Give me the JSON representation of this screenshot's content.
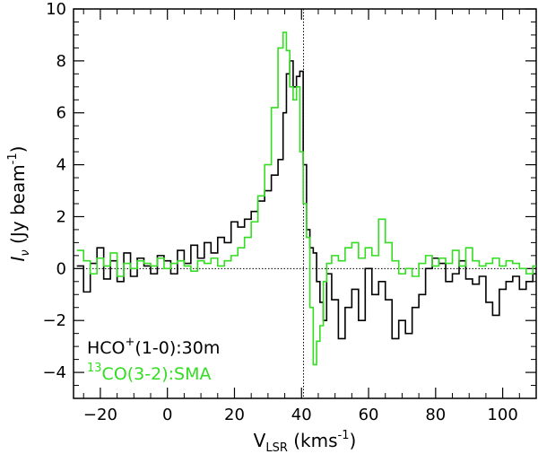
{
  "chart_data": {
    "type": "line",
    "style": "step",
    "title": "",
    "xlabel": {
      "main": "V",
      "sub": "LSR",
      "unit_pre": "(kms",
      "unit_sup": "-1",
      "unit_post": ")"
    },
    "ylabel": {
      "main": "I",
      "sub": "ν",
      "unit_pre": "(Jy beam",
      "unit_sup": "-1",
      "unit_post": ")"
    },
    "xlim": [
      -28,
      110
    ],
    "ylim": [
      -5,
      10
    ],
    "xticks": [
      -20,
      0,
      20,
      40,
      60,
      80,
      100
    ],
    "yticks": [
      -4,
      -2,
      0,
      2,
      4,
      6,
      8,
      10
    ],
    "grid": false,
    "zero_line": 0,
    "vertical_line": 40.6,
    "legend_placement": "bottom-left",
    "series": [
      {
        "label_main": "HCO",
        "label_sup": "+",
        "label_rest": "(1-0):30m",
        "color": "#000000",
        "x": [
          -26,
          -24,
          -22,
          -20,
          -18,
          -16,
          -14,
          -12,
          -10,
          -8,
          -6,
          -4,
          -2,
          0,
          2,
          4,
          6,
          8,
          10,
          12,
          14,
          16,
          18,
          20,
          22,
          24,
          26,
          28,
          30,
          32,
          34,
          35,
          36,
          37,
          38,
          39,
          40,
          41,
          42,
          43,
          44,
          45,
          46,
          47,
          48,
          50,
          52,
          54,
          56,
          58,
          60,
          62,
          64,
          66,
          68,
          70,
          72,
          74,
          76,
          78,
          80,
          82,
          84,
          86,
          88,
          90,
          92,
          94,
          96,
          98,
          100,
          102,
          104,
          106,
          108,
          110
        ],
        "y": [
          0.1,
          -0.9,
          0.2,
          0.8,
          -0.4,
          0.3,
          -0.5,
          0.6,
          -0.3,
          0.4,
          0.1,
          -0.2,
          0.5,
          0.3,
          -0.2,
          0.7,
          0.2,
          0.9,
          0.4,
          1.0,
          0.6,
          1.2,
          1.0,
          1.8,
          1.6,
          1.9,
          2.2,
          2.6,
          3.0,
          3.6,
          4.2,
          6.0,
          7.5,
          8.0,
          7.0,
          7.4,
          7.6,
          4.0,
          1.5,
          0.8,
          0.6,
          -0.5,
          -1.3,
          -2.0,
          -0.2,
          -1.2,
          -2.7,
          -1.5,
          -0.8,
          -2.0,
          0.0,
          -1.0,
          -0.5,
          -1.2,
          -2.7,
          -2.0,
          -2.5,
          -1.5,
          -1.0,
          0.0,
          0.4,
          0.2,
          -0.5,
          -0.2,
          0.3,
          -0.4,
          -0.6,
          -0.3,
          -1.3,
          -1.8,
          -0.8,
          -0.5,
          -0.3,
          -0.8,
          -0.5,
          -0.2
        ]
      },
      {
        "label_main": "CO(3-2):SMA",
        "label_pre_sup": "13",
        "color": "#33dd22",
        "x": [
          -26,
          -24,
          -22,
          -20,
          -18,
          -16,
          -14,
          -12,
          -10,
          -8,
          -6,
          -4,
          -2,
          0,
          2,
          4,
          6,
          8,
          10,
          12,
          14,
          16,
          18,
          20,
          22,
          24,
          26,
          28,
          30,
          32,
          34,
          35,
          36,
          37,
          38,
          39,
          40,
          41,
          42,
          43,
          44,
          45,
          46,
          47,
          48,
          50,
          52,
          54,
          56,
          58,
          60,
          62,
          64,
          66,
          68,
          70,
          72,
          74,
          76,
          78,
          80,
          82,
          84,
          86,
          88,
          90,
          92,
          94,
          96,
          98,
          100,
          102,
          104,
          106,
          108,
          110
        ],
        "y": [
          0.7,
          0.3,
          -0.2,
          0.4,
          0.1,
          0.6,
          -0.3,
          0.2,
          0.0,
          0.3,
          0.2,
          0.1,
          0.4,
          0.0,
          0.2,
          0.3,
          0.1,
          -0.1,
          0.3,
          0.2,
          0.4,
          0.1,
          0.3,
          0.5,
          0.8,
          1.2,
          1.8,
          2.8,
          4.0,
          6.2,
          8.5,
          9.1,
          8.4,
          7.0,
          6.5,
          7.0,
          4.5,
          2.5,
          1.2,
          -1.5,
          -3.7,
          -2.8,
          -2.2,
          -0.5,
          0.2,
          0.5,
          0.3,
          0.8,
          1.0,
          0.4,
          0.8,
          0.5,
          1.9,
          1.0,
          0.3,
          -0.2,
          0.0,
          -0.3,
          0.2,
          0.5,
          0.1,
          0.4,
          0.2,
          0.7,
          0.1,
          0.8,
          0.3,
          0.1,
          0.2,
          0.4,
          0.1,
          0.3,
          0.2,
          0.0,
          -0.2,
          0.1
        ]
      }
    ]
  }
}
